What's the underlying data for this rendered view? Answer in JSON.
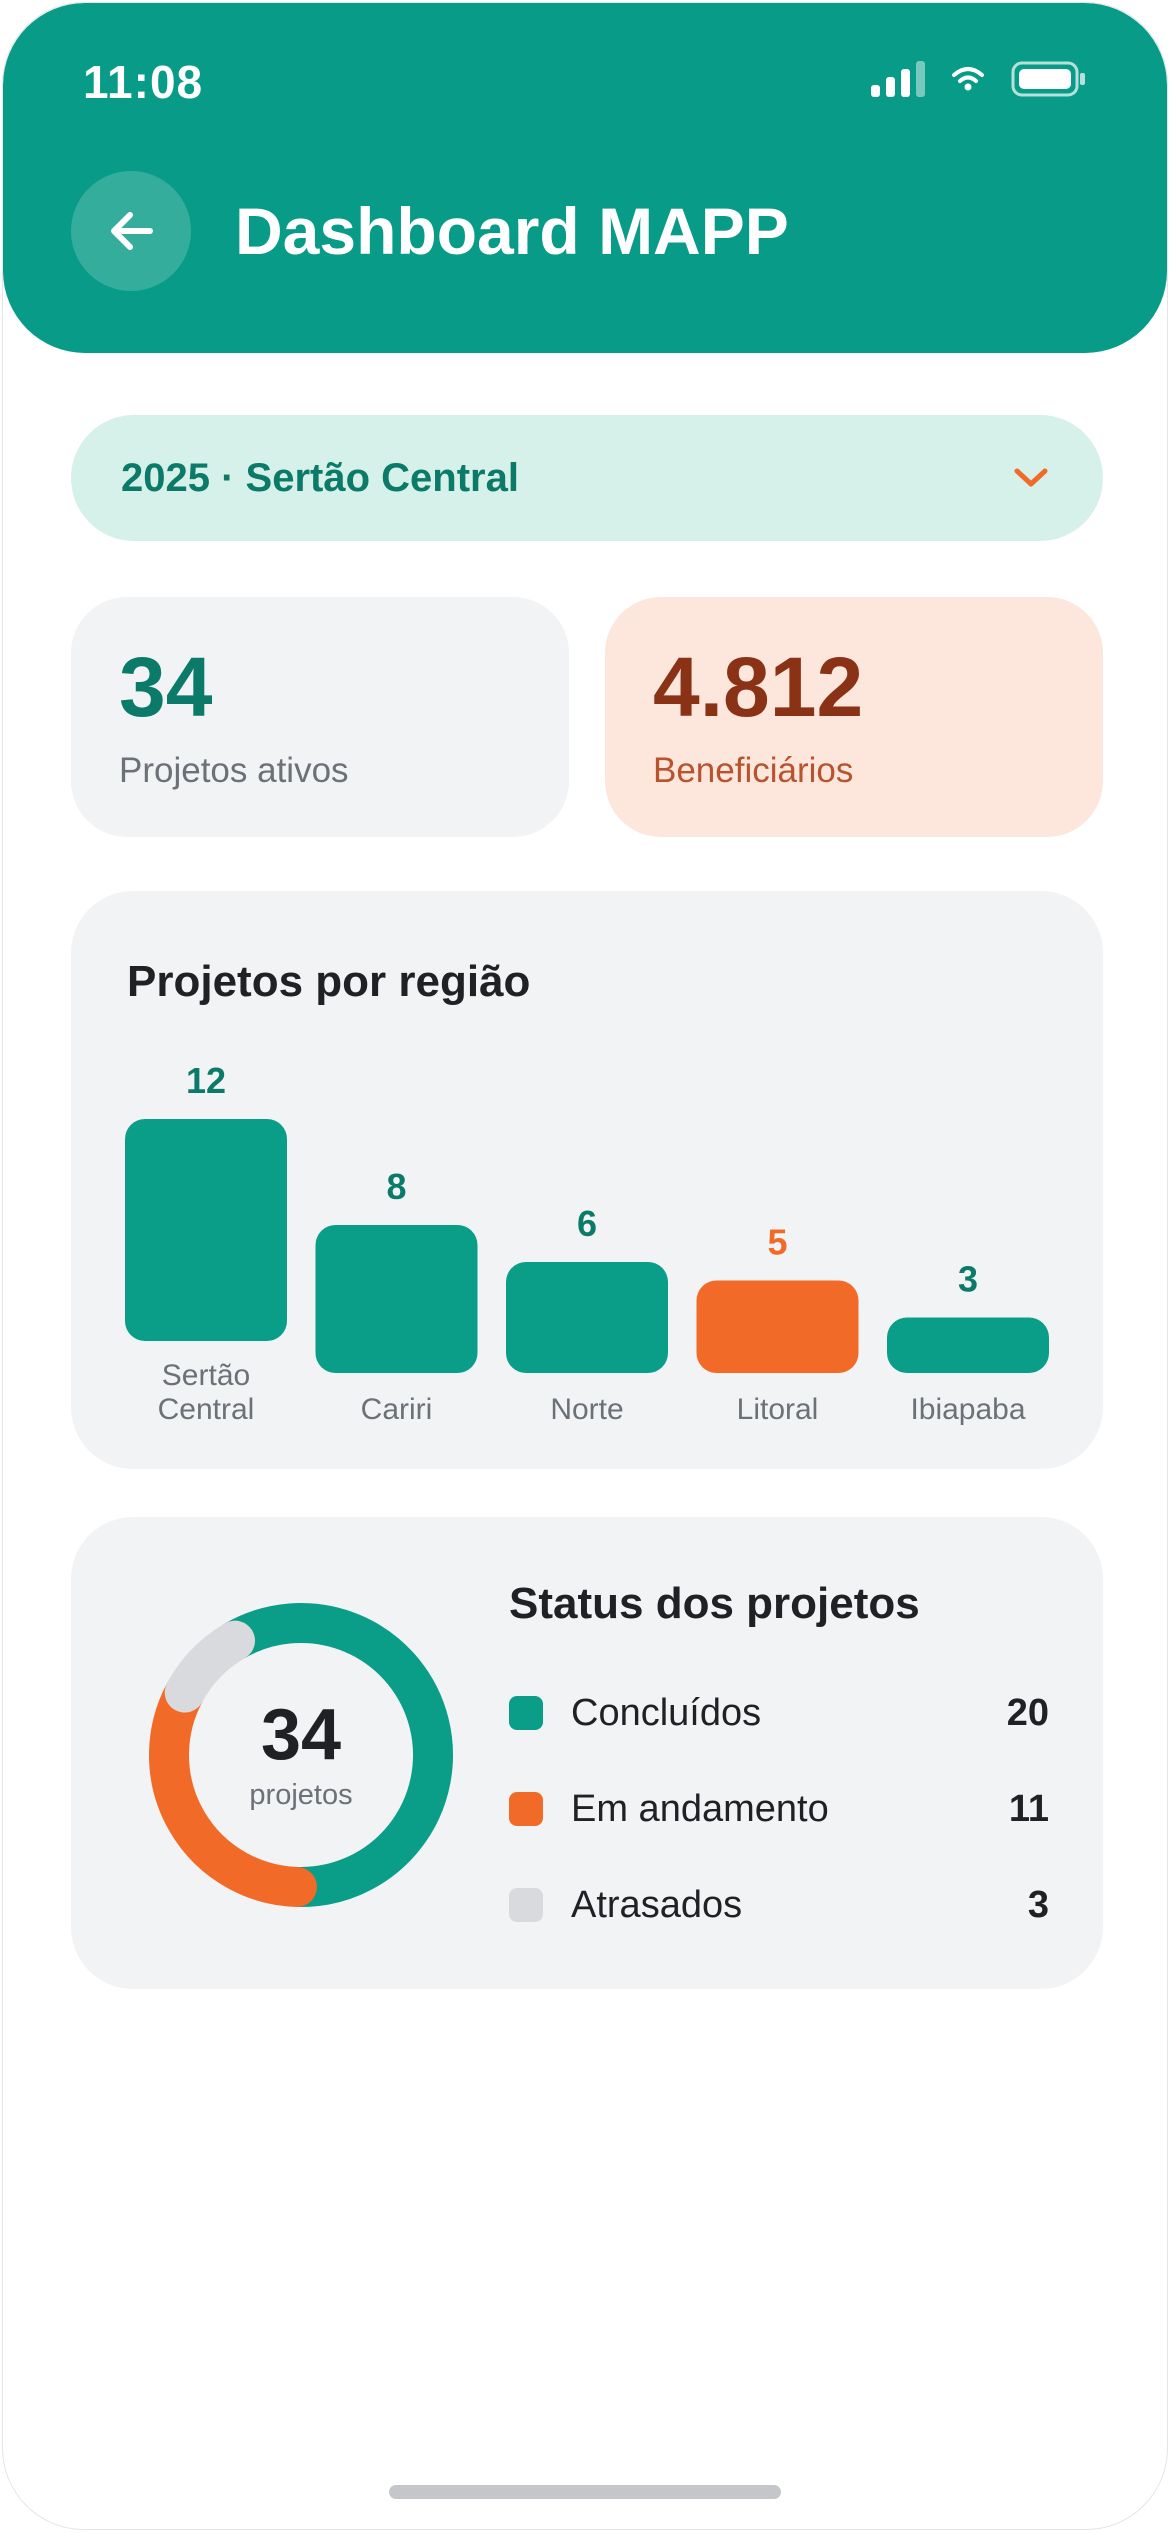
{
  "status_bar": {
    "time": "11:08"
  },
  "header": {
    "title": "Dashboard MAPP"
  },
  "filter": {
    "label": "2025 · Sertão Central"
  },
  "stats": [
    {
      "value": "34",
      "label": "Projetos ativos"
    },
    {
      "value": "4.812",
      "label": "Beneficiários"
    }
  ],
  "chart_data": {
    "type": "bar",
    "title": "Projetos por região",
    "categories": [
      "Sertão Central",
      "Cariri",
      "Norte",
      "Litoral",
      "Ibiapaba"
    ],
    "category_lines": [
      [
        "Sertão",
        "Central"
      ],
      [
        "Cariri"
      ],
      [
        "Norte"
      ],
      [
        "Litoral"
      ],
      [
        "Ibiapaba"
      ]
    ],
    "values": [
      12,
      8,
      6,
      5,
      3
    ],
    "highlight_index": 3,
    "colors": {
      "bar": "#0a9e88",
      "highlight": "#f26a27",
      "label": "#0b7a69",
      "highlight_label": "#f26a27"
    }
  },
  "status": {
    "title": "Status dos projetos",
    "total": "34",
    "total_label": "projetos",
    "items": [
      {
        "name": "Concluídos",
        "value": 20,
        "color": "#0a9e88"
      },
      {
        "name": "Em andamento",
        "value": 11,
        "color": "#f26a27"
      },
      {
        "name": "Atrasados",
        "value": 3,
        "color": "#d9dadd"
      }
    ]
  }
}
